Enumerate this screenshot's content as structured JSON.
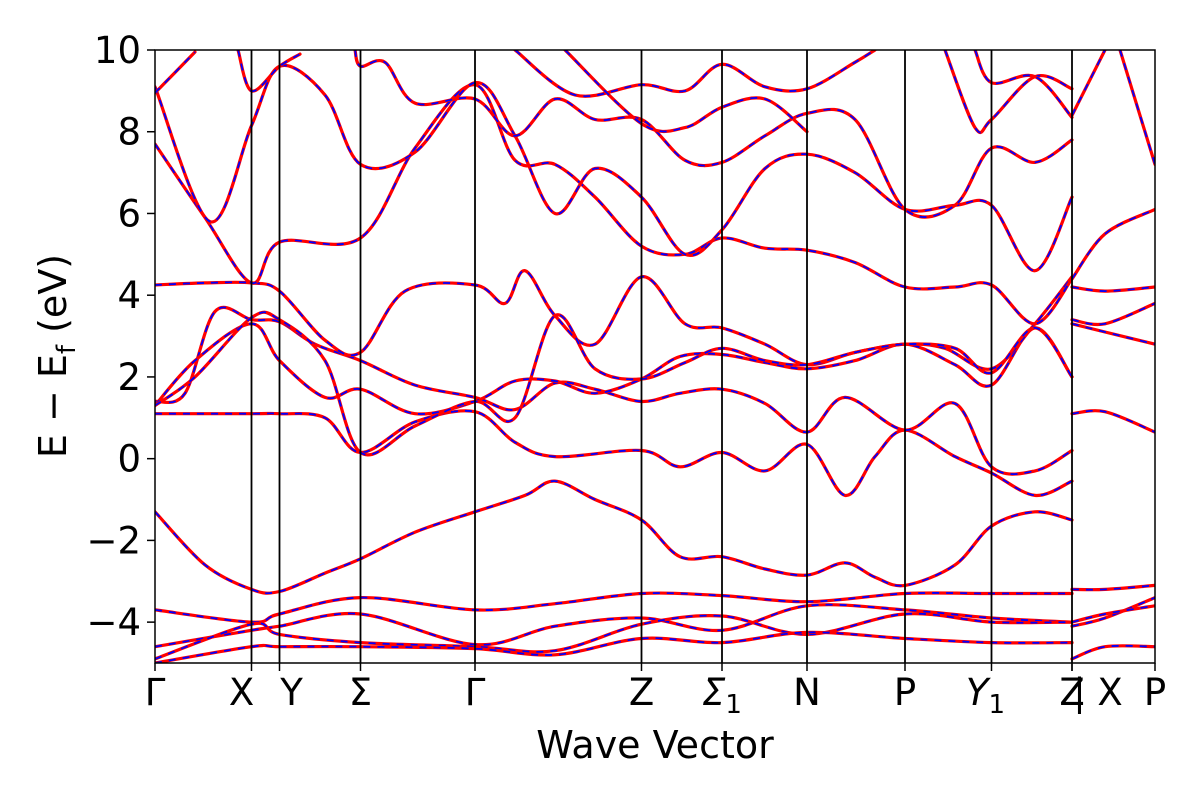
{
  "chart_data": {
    "type": "line",
    "xlabel": "Wave Vector",
    "ylabel_parts": {
      "main": "E − E",
      "sub": "f",
      "tail": " (eV)"
    },
    "ylim": [
      -5,
      10
    ],
    "yticks": [
      {
        "value": -4,
        "label": "−4"
      },
      {
        "value": -2,
        "label": "−2"
      },
      {
        "value": 0,
        "label": "0"
      },
      {
        "value": 2,
        "label": "2"
      },
      {
        "value": 4,
        "label": "4"
      },
      {
        "value": 6,
        "label": "6"
      },
      {
        "value": 8,
        "label": "8"
      },
      {
        "value": 10,
        "label": "10"
      }
    ],
    "kpoint_path": [
      {
        "label": "Γ",
        "x": 0.0
      },
      {
        "label": "X",
        "x": 0.965
      },
      {
        "label": "Y",
        "x": 1.245
      },
      {
        "label": "Σ",
        "x": 2.055
      },
      {
        "label": "Γ",
        "x": 3.2
      },
      {
        "label": "Z",
        "x": 4.865
      },
      {
        "label": "Σ",
        "sub": "1",
        "x": 5.67
      },
      {
        "label": "N",
        "x": 6.52
      },
      {
        "label": "P",
        "x": 7.5
      },
      {
        "label": "Y",
        "sub": "1",
        "x": 8.365
      },
      {
        "label": "Z",
        "x": 9.17
      },
      {
        "label": "| X",
        "x": 9.17
      },
      {
        "label": "P",
        "x": 10.0
      }
    ],
    "xlim": [
      0,
      10
    ],
    "grid": false,
    "series_styles": [
      {
        "role": "solid",
        "color": "#ff0000",
        "width": 3.2,
        "dash": ""
      },
      {
        "role": "dashed",
        "color": "#0000ff",
        "width": 1.8,
        "dash": "7,7"
      }
    ],
    "bands": [
      [
        [
          0,
          -1.3
        ],
        [
          0.5,
          -2.6
        ],
        [
          0.965,
          -3.2
        ],
        [
          1.245,
          -3.25
        ],
        [
          1.7,
          -2.8
        ],
        [
          2.055,
          -2.45
        ],
        [
          2.6,
          -1.8
        ],
        [
          3.2,
          -1.3
        ],
        [
          3.7,
          -0.9
        ],
        [
          4.0,
          -0.55
        ],
        [
          4.4,
          -1.0
        ],
        [
          4.865,
          -1.5
        ],
        [
          5.25,
          -2.4
        ],
        [
          5.67,
          -2.4
        ],
        [
          6.1,
          -2.7
        ],
        [
          6.52,
          -2.85
        ],
        [
          6.9,
          -2.55
        ],
        [
          7.2,
          -2.9
        ],
        [
          7.5,
          -3.1
        ],
        [
          8.0,
          -2.6
        ],
        [
          8.365,
          -1.65
        ],
        [
          8.8,
          -1.3
        ],
        [
          9.17,
          -1.5
        ]
      ],
      [
        [
          0,
          1.1
        ],
        [
          0.965,
          1.1
        ],
        [
          1.245,
          1.1
        ],
        [
          1.7,
          1.0
        ],
        [
          2.055,
          0.15
        ],
        [
          2.6,
          0.9
        ],
        [
          3.2,
          1.15
        ],
        [
          3.6,
          0.4
        ],
        [
          4.0,
          0.05
        ],
        [
          4.865,
          0.2
        ],
        [
          5.25,
          -0.2
        ],
        [
          5.67,
          0.15
        ],
        [
          6.1,
          -0.3
        ],
        [
          6.52,
          0.35
        ],
        [
          6.9,
          -0.9
        ],
        [
          7.2,
          0.05
        ],
        [
          7.5,
          0.7
        ],
        [
          8.0,
          0.05
        ],
        [
          8.365,
          -0.35
        ],
        [
          8.8,
          -0.9
        ],
        [
          9.17,
          -0.55
        ]
      ],
      [
        [
          0,
          1.4
        ],
        [
          0.3,
          1.6
        ],
        [
          0.6,
          3.6
        ],
        [
          0.965,
          3.4
        ],
        [
          1.245,
          3.35
        ],
        [
          1.6,
          2.8
        ],
        [
          2.055,
          2.4
        ],
        [
          2.6,
          1.8
        ],
        [
          3.2,
          1.5
        ],
        [
          3.6,
          1.2
        ],
        [
          4.0,
          1.85
        ],
        [
          4.4,
          1.7
        ],
        [
          4.865,
          1.4
        ],
        [
          5.25,
          1.6
        ],
        [
          5.67,
          1.7
        ],
        [
          6.1,
          1.35
        ],
        [
          6.52,
          0.65
        ],
        [
          6.9,
          1.5
        ],
        [
          7.5,
          0.7
        ],
        [
          8.0,
          1.35
        ],
        [
          8.365,
          -0.2
        ],
        [
          8.8,
          -0.3
        ],
        [
          9.17,
          0.2
        ]
      ],
      [
        [
          0,
          1.3
        ],
        [
          0.4,
          2.4
        ],
        [
          0.965,
          3.3
        ],
        [
          1.245,
          2.4
        ],
        [
          1.7,
          1.5
        ],
        [
          2.055,
          1.7
        ],
        [
          2.6,
          1.1
        ],
        [
          3.2,
          1.4
        ],
        [
          3.6,
          1.9
        ],
        [
          4.0,
          1.9
        ],
        [
          4.4,
          1.6
        ],
        [
          4.865,
          1.95
        ],
        [
          5.25,
          2.5
        ],
        [
          5.67,
          2.55
        ],
        [
          6.1,
          2.35
        ],
        [
          6.52,
          2.2
        ],
        [
          7.0,
          2.4
        ],
        [
          7.5,
          2.8
        ],
        [
          8.0,
          2.3
        ],
        [
          8.365,
          1.8
        ],
        [
          8.8,
          3.2
        ],
        [
          9.17,
          2.0
        ]
      ],
      [
        [
          0,
          4.25
        ],
        [
          0.5,
          4.3
        ],
        [
          0.965,
          4.3
        ],
        [
          1.245,
          4.1
        ],
        [
          1.7,
          2.9
        ],
        [
          2.055,
          2.6
        ],
        [
          2.5,
          4.1
        ],
        [
          3.2,
          4.25
        ],
        [
          3.5,
          3.8
        ],
        [
          3.7,
          4.6
        ],
        [
          4.0,
          3.5
        ],
        [
          4.4,
          2.8
        ],
        [
          4.865,
          4.45
        ],
        [
          5.3,
          3.3
        ],
        [
          5.67,
          3.2
        ],
        [
          6.1,
          2.8
        ],
        [
          6.52,
          2.3
        ],
        [
          7.0,
          2.6
        ],
        [
          7.5,
          2.8
        ],
        [
          7.9,
          2.7
        ],
        [
          8.365,
          2.2
        ],
        [
          8.8,
          3.3
        ],
        [
          9.17,
          4.45
        ]
      ],
      [
        [
          0,
          7.7
        ],
        [
          0.5,
          5.9
        ],
        [
          0.965,
          4.3
        ],
        [
          1.245,
          5.3
        ],
        [
          2.055,
          5.4
        ],
        [
          2.6,
          7.6
        ],
        [
          3.2,
          9.15
        ],
        [
          3.6,
          7.3
        ],
        [
          4.0,
          7.2
        ],
        [
          4.4,
          6.4
        ],
        [
          4.865,
          5.2
        ],
        [
          5.3,
          5.0
        ],
        [
          5.67,
          5.4
        ],
        [
          6.1,
          5.15
        ],
        [
          6.52,
          5.1
        ],
        [
          7.0,
          4.8
        ],
        [
          7.5,
          4.2
        ],
        [
          8.0,
          4.2
        ],
        [
          8.365,
          4.25
        ],
        [
          8.8,
          3.3
        ],
        [
          9.17,
          4.4
        ]
      ],
      [
        [
          0,
          9.1
        ],
        [
          0.55,
          5.8
        ],
        [
          0.965,
          8.15
        ],
        [
          1.245,
          9.6
        ],
        [
          1.7,
          8.9
        ],
        [
          2.055,
          7.2
        ],
        [
          2.6,
          7.5
        ],
        [
          3.2,
          9.2
        ],
        [
          3.6,
          7.9
        ],
        [
          4.0,
          6.0
        ],
        [
          4.4,
          7.1
        ],
        [
          4.865,
          6.4
        ],
        [
          5.3,
          5.0
        ],
        [
          5.67,
          5.6
        ],
        [
          6.1,
          7.1
        ],
        [
          6.52,
          7.45
        ],
        [
          7.0,
          7.0
        ],
        [
          7.5,
          6.1
        ],
        [
          8.0,
          6.2
        ],
        [
          8.365,
          6.2
        ],
        [
          8.8,
          4.6
        ],
        [
          9.17,
          6.4
        ]
      ],
      [
        [
          0,
          1.3
        ],
        [
          0.4,
          2.0
        ],
        [
          0.965,
          3.45
        ],
        [
          1.245,
          3.4
        ],
        [
          1.7,
          2.4
        ],
        [
          2.055,
          0.15
        ],
        [
          2.6,
          0.8
        ],
        [
          3.2,
          1.4
        ],
        [
          3.6,
          1.0
        ],
        [
          4.0,
          3.5
        ],
        [
          4.4,
          2.2
        ],
        [
          4.865,
          1.95
        ],
        [
          5.3,
          2.35
        ],
        [
          5.67,
          2.7
        ],
        [
          6.1,
          2.4
        ],
        [
          6.52,
          2.3
        ],
        [
          7.0,
          2.6
        ],
        [
          7.5,
          2.8
        ],
        [
          8.0,
          2.7
        ],
        [
          8.365,
          2.1
        ],
        [
          8.8,
          3.2
        ],
        [
          9.17,
          2.0
        ]
      ],
      [
        [
          0,
          -3.7
        ],
        [
          0.965,
          -4.0
        ],
        [
          1.245,
          -3.8
        ],
        [
          2.055,
          -3.4
        ],
        [
          3.2,
          -3.7
        ],
        [
          4.0,
          -3.55
        ],
        [
          4.865,
          -3.3
        ],
        [
          5.67,
          -3.35
        ],
        [
          6.52,
          -3.5
        ],
        [
          7.5,
          -3.3
        ],
        [
          8.365,
          -3.3
        ],
        [
          9.17,
          -3.3
        ]
      ],
      [
        [
          0,
          -4.6
        ],
        [
          0.965,
          -4.2
        ],
        [
          1.245,
          -4.1
        ],
        [
          2.055,
          -3.8
        ],
        [
          3.2,
          -4.55
        ],
        [
          4.0,
          -4.1
        ],
        [
          4.865,
          -3.9
        ],
        [
          5.67,
          -4.2
        ],
        [
          6.52,
          -3.6
        ],
        [
          7.5,
          -3.7
        ],
        [
          8.365,
          -3.9
        ],
        [
          9.17,
          -4.0
        ]
      ],
      [
        [
          0,
          -4.9
        ],
        [
          0.965,
          -4.05
        ],
        [
          1.245,
          -4.3
        ],
        [
          2.055,
          -4.5
        ],
        [
          3.2,
          -4.6
        ],
        [
          4.0,
          -4.7
        ],
        [
          4.865,
          -4.05
        ],
        [
          5.67,
          -3.85
        ],
        [
          6.52,
          -4.3
        ],
        [
          7.5,
          -3.8
        ],
        [
          8.365,
          -4.0
        ],
        [
          9.17,
          -4.0
        ]
      ],
      [
        [
          0,
          -5.0
        ],
        [
          0.965,
          -4.6
        ],
        [
          1.245,
          -4.6
        ],
        [
          2.055,
          -4.6
        ],
        [
          3.2,
          -4.65
        ],
        [
          4.0,
          -4.8
        ],
        [
          4.865,
          -4.4
        ],
        [
          5.67,
          -4.5
        ],
        [
          6.52,
          -4.25
        ],
        [
          7.5,
          -4.4
        ],
        [
          8.365,
          -4.5
        ],
        [
          9.17,
          -4.5
        ]
      ],
      [
        [
          0,
          8.95
        ],
        [
          0.4,
          9.95
        ]
      ],
      [
        [
          0.83,
          10.0
        ],
        [
          0.965,
          9.0
        ],
        [
          1.245,
          9.6
        ],
        [
          1.45,
          9.9
        ]
      ],
      [
        [
          2.0,
          10.0
        ],
        [
          2.055,
          9.6
        ],
        [
          2.3,
          9.7
        ],
        [
          2.6,
          8.7
        ],
        [
          3.2,
          8.8
        ],
        [
          3.6,
          7.9
        ],
        [
          4.0,
          8.8
        ],
        [
          4.4,
          8.3
        ],
        [
          4.865,
          8.3
        ],
        [
          5.3,
          7.3
        ],
        [
          5.67,
          7.25
        ],
        [
          6.1,
          7.9
        ],
        [
          6.52,
          8.45
        ],
        [
          7.0,
          8.3
        ],
        [
          7.5,
          6.1
        ],
        [
          8.0,
          6.2
        ],
        [
          8.365,
          7.6
        ],
        [
          8.8,
          7.25
        ],
        [
          9.17,
          7.8
        ]
      ],
      [
        [
          3.6,
          10.0
        ],
        [
          4.2,
          8.9
        ],
        [
          4.865,
          9.15
        ],
        [
          5.3,
          9.0
        ],
        [
          5.67,
          9.65
        ],
        [
          6.1,
          9.1
        ],
        [
          6.52,
          9.05
        ],
        [
          7.0,
          9.7
        ],
        [
          7.2,
          10.0
        ]
      ],
      [
        [
          4.1,
          10.0
        ],
        [
          4.865,
          8.2
        ],
        [
          5.3,
          8.1
        ],
        [
          5.67,
          8.6
        ],
        [
          6.1,
          8.8
        ],
        [
          6.52,
          8.0
        ]
      ],
      [
        [
          7.9,
          10.0
        ],
        [
          8.2,
          8.1
        ],
        [
          8.365,
          8.3
        ],
        [
          8.8,
          9.35
        ],
        [
          9.17,
          9.05
        ]
      ],
      [
        [
          8.2,
          10.0
        ],
        [
          8.365,
          9.2
        ],
        [
          8.8,
          9.35
        ],
        [
          9.17,
          8.35
        ]
      ],
      [
        [
          9.17,
          4.2
        ],
        [
          9.5,
          4.1
        ],
        [
          10.0,
          4.2
        ]
      ],
      [
        [
          9.17,
          3.4
        ],
        [
          9.5,
          3.3
        ],
        [
          10.0,
          3.8
        ]
      ],
      [
        [
          9.17,
          3.3
        ],
        [
          9.5,
          3.1
        ],
        [
          10.0,
          2.8
        ]
      ],
      [
        [
          9.17,
          1.1
        ],
        [
          9.5,
          1.15
        ],
        [
          10.0,
          0.65
        ]
      ],
      [
        [
          9.17,
          4.4
        ],
        [
          9.5,
          5.5
        ],
        [
          10.0,
          6.1
        ]
      ],
      [
        [
          9.17,
          8.4
        ],
        [
          9.5,
          10.0
        ]
      ],
      [
        [
          9.65,
          10.0
        ],
        [
          10.0,
          7.2
        ]
      ],
      [
        [
          9.17,
          -3.2
        ],
        [
          9.5,
          -3.2
        ],
        [
          10.0,
          -3.1
        ]
      ],
      [
        [
          9.17,
          -4.1
        ],
        [
          9.5,
          -3.9
        ],
        [
          10.0,
          -3.4
        ]
      ],
      [
        [
          9.17,
          -4.0
        ],
        [
          9.5,
          -3.8
        ],
        [
          10.0,
          -3.6
        ]
      ],
      [
        [
          9.17,
          -4.9
        ],
        [
          9.5,
          -4.6
        ],
        [
          10.0,
          -4.6
        ]
      ]
    ]
  }
}
